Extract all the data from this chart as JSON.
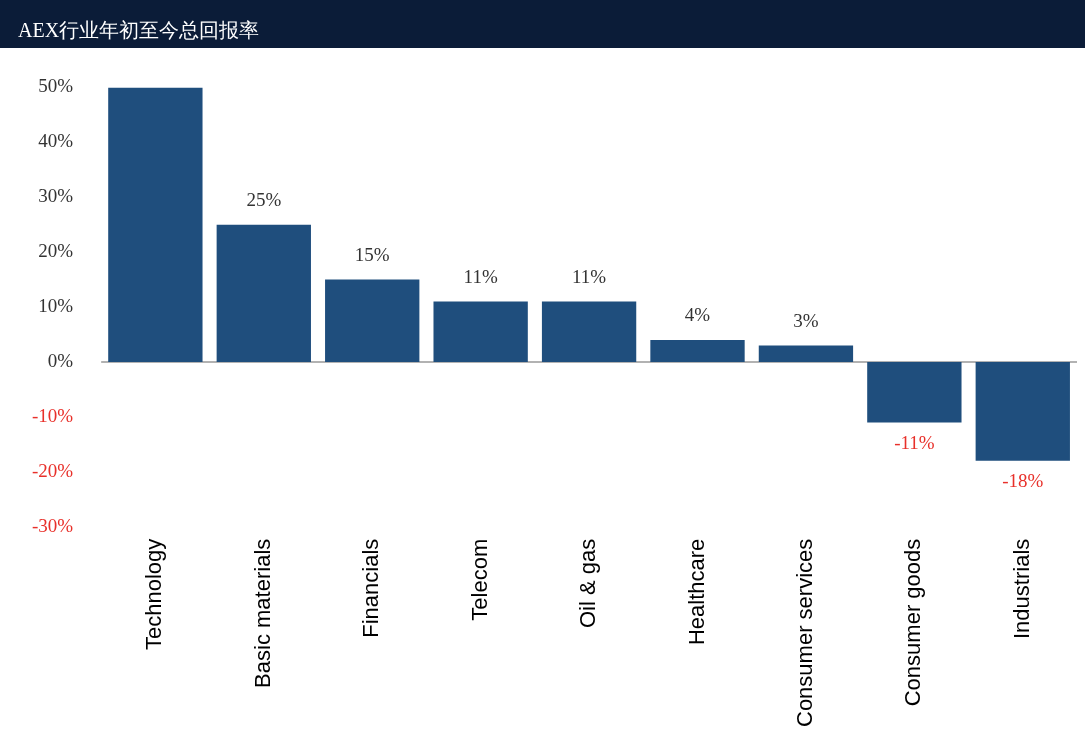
{
  "chart_data": {
    "type": "bar",
    "title": "AEX行业年初至今总回报率",
    "categories": [
      "Technology",
      "Basic materials",
      "Financials",
      "Telecom",
      "Oil & gas",
      "Healthcare",
      "Consumer services",
      "Consumer goods",
      "Industrials"
    ],
    "values": [
      50,
      25,
      15,
      11,
      11,
      4,
      3,
      -11,
      -18
    ],
    "value_labels": [
      null,
      "25%",
      "15%",
      "11%",
      "11%",
      "4%",
      "3%",
      "-11%",
      "-18%"
    ],
    "color": "#1f4e7d",
    "ylim": [
      -30,
      50
    ],
    "yticks": [
      {
        "value": -30,
        "label": "-30%"
      },
      {
        "value": -20,
        "label": "-20%"
      },
      {
        "value": -10,
        "label": "-10%"
      },
      {
        "value": 0,
        "label": "0%"
      },
      {
        "value": 10,
        "label": "10%"
      },
      {
        "value": 20,
        "label": "20%"
      },
      {
        "value": 30,
        "label": "30%"
      },
      {
        "value": 40,
        "label": "40%"
      },
      {
        "value": 50,
        "label": "50%"
      }
    ],
    "ref_lines": [
      {
        "axis": "y",
        "value": 0,
        "color": "#999999"
      }
    ],
    "grid": false,
    "legend": false
  }
}
